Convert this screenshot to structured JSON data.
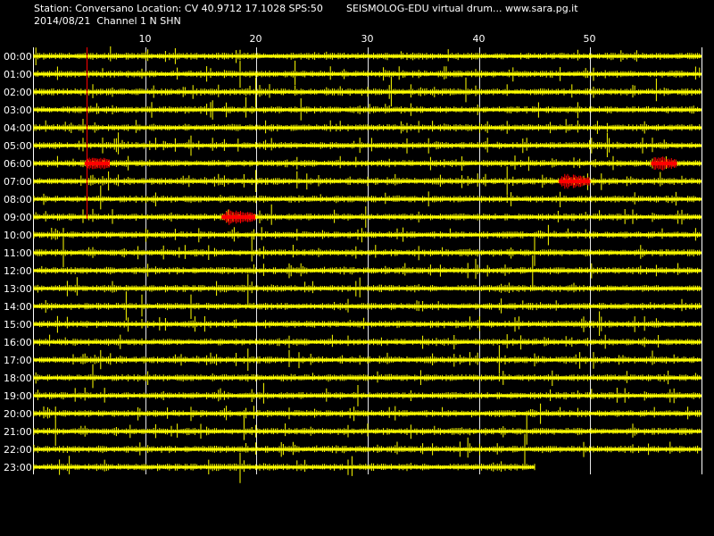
{
  "header": {
    "station_line": "Station: Conversano Location: CV 40.9712 17.1028 SPS:50",
    "date_line": "2014/08/21  Channel 1 N SHN",
    "app_line": "SEISMOLOG-EDU virtual drum... www.sara.pg.it"
  },
  "colors": {
    "background": "#000000",
    "trace": "#ffff00",
    "event": "#ff0000",
    "grid": "#ffffff",
    "text": "#ffffff"
  },
  "chart_data": {
    "type": "line",
    "title": "",
    "xlabel": "",
    "ylabel": "",
    "x_unit_minutes": true,
    "xlim": [
      0,
      60
    ],
    "x_ticks": [
      10,
      20,
      30,
      40,
      50
    ],
    "grid": true,
    "rows": [
      {
        "label": "00:00",
        "end": 60
      },
      {
        "label": "01:00",
        "end": 60
      },
      {
        "label": "02:00",
        "end": 60
      },
      {
        "label": "03:00",
        "end": 60
      },
      {
        "label": "04:00",
        "end": 60
      },
      {
        "label": "05:00",
        "end": 60
      },
      {
        "label": "06:00",
        "end": 60
      },
      {
        "label": "07:00",
        "end": 60
      },
      {
        "label": "08:00",
        "end": 60
      },
      {
        "label": "09:00",
        "end": 60
      },
      {
        "label": "10:00",
        "end": 60
      },
      {
        "label": "11:00",
        "end": 60
      },
      {
        "label": "12:00",
        "end": 60
      },
      {
        "label": "13:00",
        "end": 60
      },
      {
        "label": "14:00",
        "end": 60
      },
      {
        "label": "15:00",
        "end": 60
      },
      {
        "label": "16:00",
        "end": 60
      },
      {
        "label": "17:00",
        "end": 60
      },
      {
        "label": "18:00",
        "end": 60
      },
      {
        "label": "19:00",
        "end": 60
      },
      {
        "label": "20:00",
        "end": 60
      },
      {
        "label": "21:00",
        "end": 60
      },
      {
        "label": "22:00",
        "end": 60
      },
      {
        "label": "23:00",
        "end": 45
      }
    ],
    "events": [
      {
        "row": "06:00",
        "start": 4.6,
        "end": 6.8
      },
      {
        "row": "06:00",
        "start": 55.5,
        "end": 57.8
      },
      {
        "row": "07:00",
        "start": 47.2,
        "end": 50.0
      },
      {
        "row": "09:00",
        "start": 16.9,
        "end": 19.9
      }
    ],
    "marker_minute": 4.7
  }
}
